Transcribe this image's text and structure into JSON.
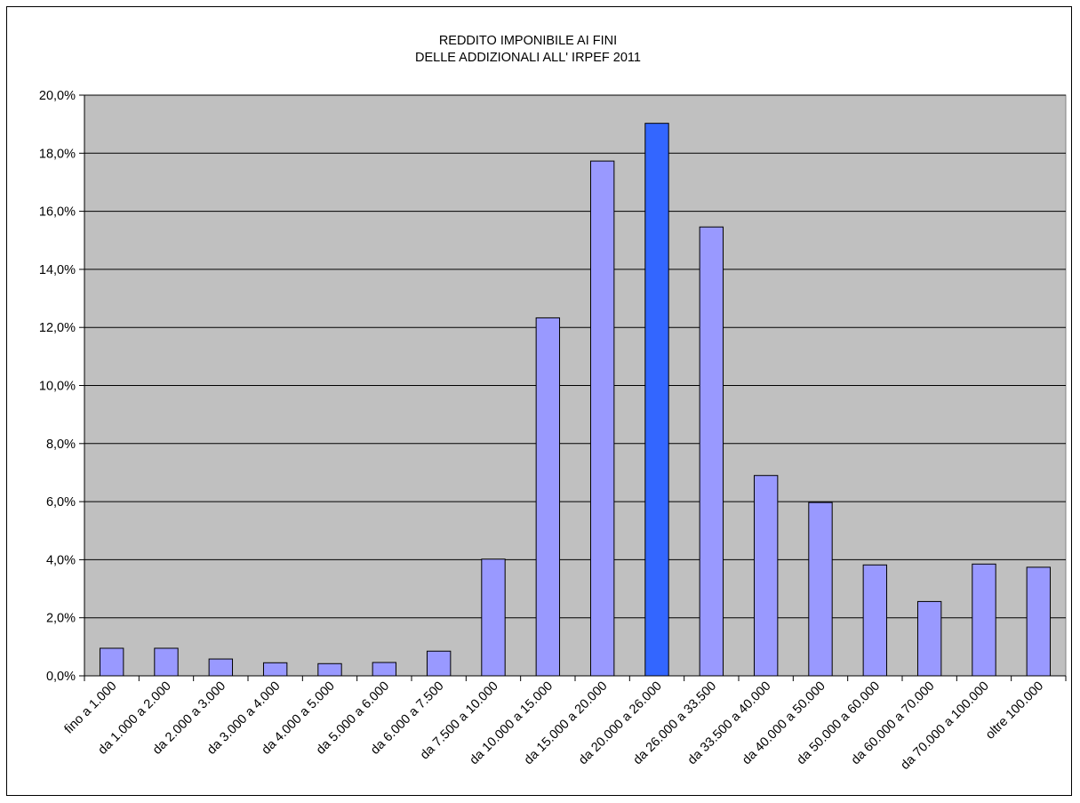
{
  "chart_data": {
    "type": "bar",
    "title": [
      "REDDITO IMPONIBILE AI FINI",
      "DELLE ADDIZIONALI ALL' IRPEF 2011"
    ],
    "xlabel": "",
    "ylabel": "",
    "ylim": [
      0,
      20
    ],
    "yticks": [
      "0,0%",
      "2,0%",
      "4,0%",
      "6,0%",
      "8,0%",
      "10,0%",
      "12,0%",
      "14,0%",
      "16,0%",
      "18,0%",
      "20,0%"
    ],
    "grid": true,
    "legend": "none",
    "categories": [
      "fino a 1.000",
      "da 1.000 a 2.000",
      "da 2.000 a 3.000",
      "da 3.000 a 4.000",
      "da 4.000 a 5.000",
      "da 5.000 a 6.000",
      "da 6.000 a 7.500",
      "da 7.500 a 10.000",
      "da 10.000 a 15.000",
      "da 15.000 a 20.000",
      "da 20.000 a 26.000",
      "da 26.000 a 33.500",
      "da 33.500 a 40.000",
      "da 40.000 a 50.000",
      "da 50.000 a 60.000",
      "da 60.000 a 70.000",
      "da 70.000 a 100.000",
      "oltre 100.000"
    ],
    "values": [
      0.95,
      0.95,
      0.58,
      0.45,
      0.42,
      0.46,
      0.85,
      4.02,
      12.33,
      17.73,
      19.03,
      15.46,
      6.9,
      5.97,
      3.82,
      2.56,
      3.85,
      3.74
    ],
    "highlight_index": 10,
    "colors": {
      "bar": "#9999ff",
      "bar_highlight": "#3366ff",
      "plot_background": "#c0c0c0",
      "gridline": "#000000",
      "bar_stroke": "#000000"
    }
  }
}
